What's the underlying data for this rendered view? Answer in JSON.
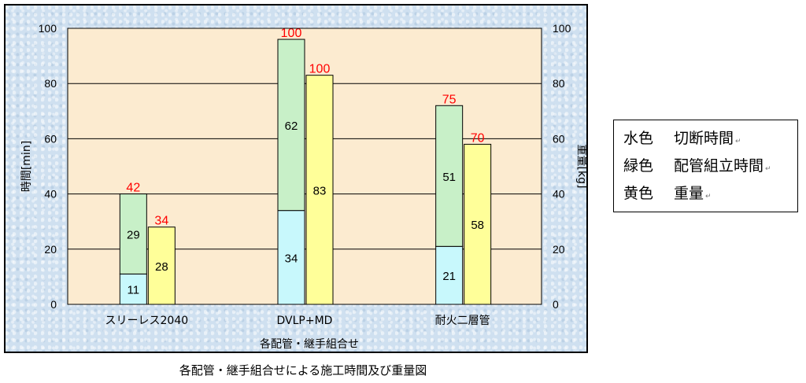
{
  "chart_data": {
    "type": "bar",
    "subtype": "grouped-stacked",
    "categories": [
      "スリーレス2040",
      "DVLP+MD",
      "耐火二層管"
    ],
    "xlabel": "各配管・継手組合せ",
    "ylabel_left": "時間[min]",
    "ylabel_right": "重量[kg]",
    "ylim_left": [
      0,
      100
    ],
    "ylim_right": [
      0,
      100
    ],
    "yticks_left": [
      "0",
      "20",
      "40",
      "60",
      "80",
      "100"
    ],
    "yticks_right": [
      "0",
      "20",
      "40",
      "60",
      "80",
      "100"
    ],
    "grid": true,
    "time_stack": {
      "series": [
        {
          "name": "切断時間",
          "color": "#c8f8fc",
          "values": [
            11,
            34,
            21
          ]
        },
        {
          "name": "配管組立時間",
          "color": "#c8f0c8",
          "values": [
            29,
            62,
            51
          ]
        }
      ],
      "total_labels": [
        "42",
        "100",
        "75"
      ]
    },
    "weight": {
      "name": "重量",
      "color": "#ffff99",
      "values": [
        28,
        83,
        58
      ],
      "total_labels": [
        "34",
        "100",
        "70"
      ]
    },
    "total_label_color": "#ff0000"
  },
  "legend": [
    {
      "color_word": "水色",
      "label": "切断時間"
    },
    {
      "color_word": "緑色",
      "label": "配管組立時間"
    },
    {
      "color_word": "黄色",
      "label": "重量"
    }
  ],
  "legend_mark": "↵",
  "caption": "各配管・継手組合せによる施工時間及び重量図"
}
